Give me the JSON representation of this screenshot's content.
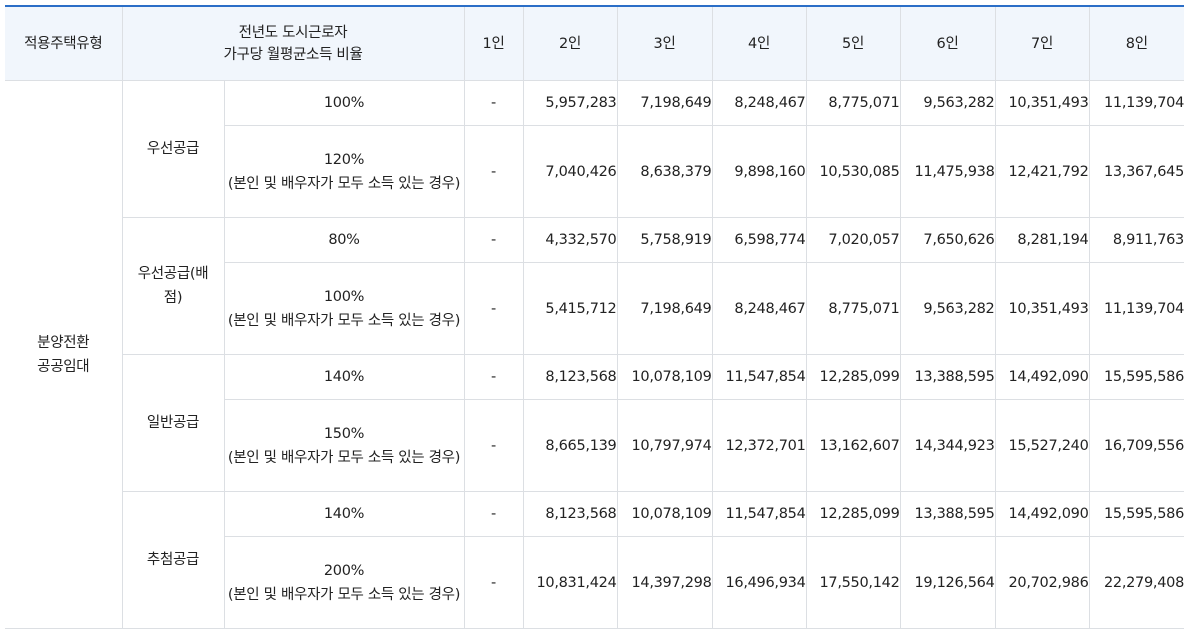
{
  "table": {
    "headers": {
      "housing_type": "적용주택유형",
      "ratio_line1": "전년도 도시근로자",
      "ratio_line2": "가구당 월평균소득 비율",
      "persons": [
        "1인",
        "2인",
        "3인",
        "4인",
        "5인",
        "6인",
        "7인",
        "8인"
      ]
    },
    "housing_type": {
      "line1": "분양전환",
      "line2": "공공임대"
    },
    "groups": [
      {
        "supply_line1": "우선공급",
        "supply_line2": "",
        "rows": [
          {
            "ratio": "100%",
            "note": "",
            "values": [
              "-",
              "5,957,283",
              "7,198,649",
              "8,248,467",
              "8,775,071",
              "9,563,282",
              "10,351,493",
              "11,139,704"
            ]
          },
          {
            "ratio": "120%",
            "note": "(본인 및 배우자가 모두 소득 있는 경우)",
            "values": [
              "-",
              "7,040,426",
              "8,638,379",
              "9,898,160",
              "10,530,085",
              "11,475,938",
              "12,421,792",
              "13,367,645"
            ]
          }
        ]
      },
      {
        "supply_line1": "우선공급(배",
        "supply_line2": "점)",
        "rows": [
          {
            "ratio": "80%",
            "note": "",
            "values": [
              "-",
              "4,332,570",
              "5,758,919",
              "6,598,774",
              "7,020,057",
              "7,650,626",
              "8,281,194",
              "8,911,763"
            ]
          },
          {
            "ratio": "100%",
            "note": "(본인 및 배우자가 모두 소득 있는 경우)",
            "values": [
              "-",
              "5,415,712",
              "7,198,649",
              "8,248,467",
              "8,775,071",
              "9,563,282",
              "10,351,493",
              "11,139,704"
            ]
          }
        ]
      },
      {
        "supply_line1": "일반공급",
        "supply_line2": "",
        "rows": [
          {
            "ratio": "140%",
            "note": "",
            "values": [
              "-",
              "8,123,568",
              "10,078,109",
              "11,547,854",
              "12,285,099",
              "13,388,595",
              "14,492,090",
              "15,595,586"
            ]
          },
          {
            "ratio": "150%",
            "note": "(본인 및 배우자가 모두 소득 있는 경우)",
            "values": [
              "-",
              "8,665,139",
              "10,797,974",
              "12,372,701",
              "13,162,607",
              "14,344,923",
              "15,527,240",
              "16,709,556"
            ]
          }
        ]
      },
      {
        "supply_line1": "추첨공급",
        "supply_line2": "",
        "rows": [
          {
            "ratio": "140%",
            "note": "",
            "values": [
              "-",
              "8,123,568",
              "10,078,109",
              "11,547,854",
              "12,285,099",
              "13,388,595",
              "14,492,090",
              "15,595,586"
            ]
          },
          {
            "ratio": "200%",
            "note": "(본인 및 배우자가 모두 소득 있는 경우)",
            "values": [
              "-",
              "10,831,424",
              "14,397,298",
              "16,496,934",
              "17,550,142",
              "19,126,564",
              "20,702,986",
              "22,279,408"
            ]
          }
        ]
      }
    ]
  }
}
